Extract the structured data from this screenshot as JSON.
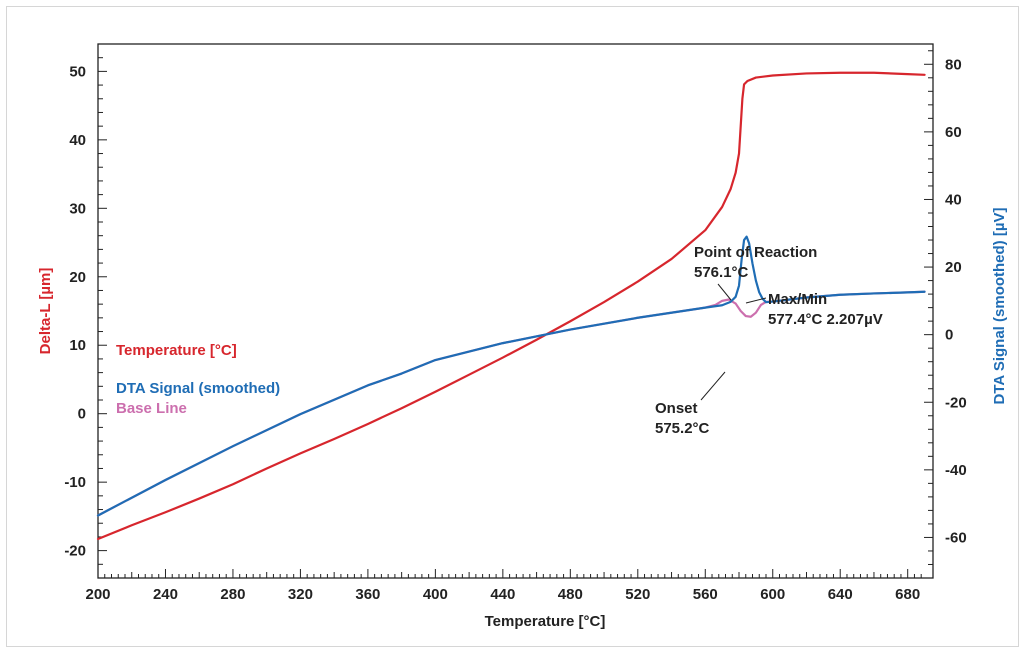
{
  "chart_data": {
    "type": "line",
    "xlabel": "Temperature [°C]",
    "ylabel_left": "Delta-L [µm]",
    "ylabel_right": "DTA Signal (smoothed) [µV]",
    "xlim": [
      200,
      695
    ],
    "ylim_left": [
      -24,
      54
    ],
    "ylim_right": [
      -72,
      86
    ],
    "x_ticks": [
      200,
      240,
      280,
      320,
      360,
      400,
      440,
      480,
      520,
      560,
      600,
      640,
      680
    ],
    "y_left_ticks": [
      -20,
      -10,
      0,
      10,
      20,
      30,
      40,
      50
    ],
    "y_right_ticks": [
      -60,
      -40,
      -20,
      0,
      20,
      40,
      60,
      80
    ],
    "grid": false,
    "legend_position": "left-middle",
    "series": [
      {
        "name": "Temperature [°C]",
        "color": "#d7262d",
        "axis": "left",
        "points": [
          [
            200,
            -18.3
          ],
          [
            220,
            -16.3
          ],
          [
            240,
            -14.4
          ],
          [
            260,
            -12.4
          ],
          [
            280,
            -10.3
          ],
          [
            300,
            -8.0
          ],
          [
            320,
            -5.8
          ],
          [
            340,
            -3.7
          ],
          [
            360,
            -1.5
          ],
          [
            380,
            0.8
          ],
          [
            400,
            3.2
          ],
          [
            420,
            5.7
          ],
          [
            440,
            8.2
          ],
          [
            460,
            10.8
          ],
          [
            480,
            13.5
          ],
          [
            500,
            16.3
          ],
          [
            520,
            19.3
          ],
          [
            540,
            22.6
          ],
          [
            560,
            26.8
          ],
          [
            570,
            30.2
          ],
          [
            575,
            32.8
          ],
          [
            578,
            35.2
          ],
          [
            580,
            38.0
          ],
          [
            581,
            42.0
          ],
          [
            582,
            46.0
          ],
          [
            583,
            48.1
          ],
          [
            585,
            48.6
          ],
          [
            590,
            49.1
          ],
          [
            600,
            49.4
          ],
          [
            620,
            49.7
          ],
          [
            640,
            49.8
          ],
          [
            660,
            49.8
          ],
          [
            680,
            49.6
          ],
          [
            690,
            49.5
          ]
        ]
      },
      {
        "name": "DTA Signal (smoothed)",
        "color": "#1f6db5",
        "axis": "right",
        "points": [
          [
            200,
            -53.5
          ],
          [
            240,
            -43
          ],
          [
            280,
            -33
          ],
          [
            320,
            -23.5
          ],
          [
            360,
            -15
          ],
          [
            380,
            -11.5
          ],
          [
            400,
            -7.5
          ],
          [
            440,
            -2.5
          ],
          [
            480,
            1.5
          ],
          [
            520,
            5
          ],
          [
            560,
            8
          ],
          [
            570,
            8.7
          ],
          [
            575,
            9.7
          ],
          [
            578,
            11.2
          ],
          [
            580,
            14.5
          ],
          [
            581.5,
            22
          ],
          [
            583,
            28
          ],
          [
            584.5,
            29
          ],
          [
            586,
            27
          ],
          [
            588,
            21
          ],
          [
            590,
            16
          ],
          [
            592,
            12.5
          ],
          [
            594,
            10.6
          ],
          [
            596,
            9.6
          ],
          [
            600,
            9.8
          ],
          [
            620,
            11
          ],
          [
            640,
            11.8
          ],
          [
            660,
            12.2
          ],
          [
            680,
            12.5
          ],
          [
            690,
            12.7
          ]
        ]
      },
      {
        "name": "Base Line",
        "color": "#cc6fae",
        "axis": "right",
        "points": [
          [
            200,
            -53.5
          ],
          [
            240,
            -43
          ],
          [
            280,
            -33
          ],
          [
            320,
            -23.5
          ],
          [
            360,
            -15
          ],
          [
            380,
            -11.5
          ],
          [
            400,
            -7.5
          ],
          [
            440,
            -2.5
          ],
          [
            480,
            1.5
          ],
          [
            520,
            5
          ],
          [
            560,
            8
          ],
          [
            566,
            8.8
          ],
          [
            570,
            10
          ],
          [
            574,
            10.4
          ],
          [
            578,
            9.2
          ],
          [
            581,
            7
          ],
          [
            584,
            5.5
          ],
          [
            587,
            5.3
          ],
          [
            590,
            6.5
          ],
          [
            593,
            8.8
          ],
          [
            596,
            9.7
          ],
          [
            600,
            9.8
          ],
          [
            620,
            11
          ],
          [
            640,
            11.8
          ],
          [
            660,
            12.2
          ],
          [
            680,
            12.5
          ],
          [
            690,
            12.7
          ]
        ]
      }
    ],
    "annotations": [
      {
        "lines": [
          "Point of Reaction",
          "576.1°C"
        ]
      },
      {
        "lines": [
          "Max/Min",
          "577.4°C  2.207µV"
        ]
      },
      {
        "lines": [
          "Onset",
          "575.2°C"
        ]
      }
    ]
  }
}
